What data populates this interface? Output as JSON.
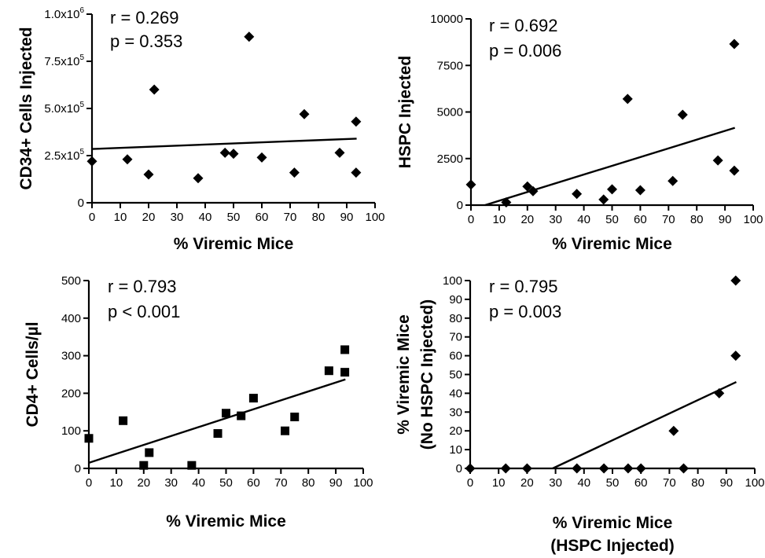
{
  "chart_data": [
    {
      "id": "a",
      "type": "scatter",
      "marker": "diamond",
      "xlabel": "% Viremic Mice",
      "ylabel": "CD34+ Cells Injected",
      "xlim": [
        0,
        100
      ],
      "ylim": [
        0,
        1000000
      ],
      "xticks": [
        0,
        10,
        20,
        30,
        40,
        50,
        60,
        70,
        80,
        90,
        100
      ],
      "yticks": [
        0,
        250000,
        500000,
        750000,
        1000000
      ],
      "ytick_labels": [
        {
          "value": 0,
          "base": "0",
          "exp": ""
        },
        {
          "value": 250000,
          "base": "2.5x10",
          "exp": "5"
        },
        {
          "value": 500000,
          "base": "5.0x10",
          "exp": "5"
        },
        {
          "value": 750000,
          "base": "7.5x10",
          "exp": "5"
        },
        {
          "value": 1000000,
          "base": "1.0x10",
          "exp": "6"
        }
      ],
      "stats": {
        "r": "r =  0.269",
        "p": "p = 0.353"
      },
      "points": [
        {
          "x": 0,
          "y": 220000
        },
        {
          "x": 12.5,
          "y": 230000
        },
        {
          "x": 20,
          "y": 150000
        },
        {
          "x": 22,
          "y": 600000
        },
        {
          "x": 37.5,
          "y": 130000
        },
        {
          "x": 47,
          "y": 265000
        },
        {
          "x": 50,
          "y": 260000
        },
        {
          "x": 55.5,
          "y": 880000
        },
        {
          "x": 60,
          "y": 240000
        },
        {
          "x": 71.5,
          "y": 160000
        },
        {
          "x": 75,
          "y": 470000
        },
        {
          "x": 87.5,
          "y": 265000
        },
        {
          "x": 93.3,
          "y": 430000
        },
        {
          "x": 93.3,
          "y": 160000
        }
      ],
      "fit": {
        "x": [
          0,
          93.5
        ],
        "y": [
          285000,
          340000
        ]
      }
    },
    {
      "id": "b",
      "type": "scatter",
      "marker": "diamond",
      "xlabel": "% Viremic Mice",
      "ylabel": "HSPC Injected",
      "xlim": [
        0,
        100
      ],
      "ylim": [
        0,
        10000
      ],
      "xticks": [
        0,
        10,
        20,
        30,
        40,
        50,
        60,
        70,
        80,
        90,
        100
      ],
      "yticks": [
        0,
        2500,
        5000,
        7500,
        10000
      ],
      "ytick_labels": [
        {
          "value": 0,
          "base": "0",
          "exp": ""
        },
        {
          "value": 2500,
          "base": "2500",
          "exp": ""
        },
        {
          "value": 5000,
          "base": "5000",
          "exp": ""
        },
        {
          "value": 7500,
          "base": "7500",
          "exp": ""
        },
        {
          "value": 10000,
          "base": "10000",
          "exp": ""
        }
      ],
      "stats": {
        "r": "r =  0.692",
        "p": "p = 0.006"
      },
      "points": [
        {
          "x": 0,
          "y": 1100
        },
        {
          "x": 12.5,
          "y": 150
        },
        {
          "x": 20,
          "y": 1000
        },
        {
          "x": 22,
          "y": 750
        },
        {
          "x": 37.5,
          "y": 600
        },
        {
          "x": 47,
          "y": 300
        },
        {
          "x": 50,
          "y": 850
        },
        {
          "x": 55.5,
          "y": 5700
        },
        {
          "x": 60,
          "y": 800
        },
        {
          "x": 71.5,
          "y": 1300
        },
        {
          "x": 75,
          "y": 4850
        },
        {
          "x": 87.5,
          "y": 2400
        },
        {
          "x": 93.3,
          "y": 8650
        },
        {
          "x": 93.3,
          "y": 1850
        }
      ],
      "fit": {
        "x": [
          5,
          93.5
        ],
        "y": [
          0,
          4150
        ]
      }
    },
    {
      "id": "c",
      "type": "scatter",
      "marker": "square",
      "xlabel": "% Viremic Mice",
      "ylabel": "CD4+ Cells/µl",
      "xlim": [
        0,
        100
      ],
      "ylim": [
        0,
        500
      ],
      "xticks": [
        0,
        10,
        20,
        30,
        40,
        50,
        60,
        70,
        80,
        90,
        100
      ],
      "yticks": [
        0,
        100,
        200,
        300,
        400,
        500
      ],
      "ytick_labels": [
        {
          "value": 0,
          "base": "0",
          "exp": ""
        },
        {
          "value": 100,
          "base": "100",
          "exp": ""
        },
        {
          "value": 200,
          "base": "200",
          "exp": ""
        },
        {
          "value": 300,
          "base": "300",
          "exp": ""
        },
        {
          "value": 400,
          "base": "400",
          "exp": ""
        },
        {
          "value": 500,
          "base": "500",
          "exp": ""
        }
      ],
      "stats": {
        "r": "r =  0.793",
        "p": "p < 0.001"
      },
      "points": [
        {
          "x": 0,
          "y": 80
        },
        {
          "x": 12.5,
          "y": 127
        },
        {
          "x": 20,
          "y": 8
        },
        {
          "x": 22,
          "y": 42
        },
        {
          "x": 37.5,
          "y": 8
        },
        {
          "x": 47,
          "y": 93
        },
        {
          "x": 50,
          "y": 147
        },
        {
          "x": 55.5,
          "y": 140
        },
        {
          "x": 60,
          "y": 187
        },
        {
          "x": 71.5,
          "y": 100
        },
        {
          "x": 75,
          "y": 137
        },
        {
          "x": 87.5,
          "y": 260
        },
        {
          "x": 93.3,
          "y": 316
        },
        {
          "x": 93.3,
          "y": 256
        }
      ],
      "fit": {
        "x": [
          0,
          93.5
        ],
        "y": [
          15,
          237
        ]
      }
    },
    {
      "id": "d",
      "type": "scatter",
      "marker": "diamond",
      "xlabel": "% Viremic Mice",
      "xlabel2": "(HSPC Injected)",
      "ylabel": "% Viremic Mice",
      "ylabel2": "(No HSPC Injected)",
      "xlim": [
        0,
        100
      ],
      "ylim": [
        0,
        100
      ],
      "xticks": [
        0,
        10,
        20,
        30,
        40,
        50,
        60,
        70,
        80,
        90,
        100
      ],
      "yticks": [
        0,
        10,
        20,
        30,
        40,
        50,
        60,
        70,
        80,
        90,
        100
      ],
      "ytick_labels": [
        {
          "value": 0,
          "base": "0",
          "exp": ""
        },
        {
          "value": 10,
          "base": "10",
          "exp": ""
        },
        {
          "value": 20,
          "base": "20",
          "exp": ""
        },
        {
          "value": 30,
          "base": "30",
          "exp": ""
        },
        {
          "value": 40,
          "base": "40",
          "exp": ""
        },
        {
          "value": 50,
          "base": "50",
          "exp": ""
        },
        {
          "value": 60,
          "base": "60",
          "exp": ""
        },
        {
          "value": 70,
          "base": "70",
          "exp": ""
        },
        {
          "value": 80,
          "base": "80",
          "exp": ""
        },
        {
          "value": 90,
          "base": "90",
          "exp": ""
        },
        {
          "value": 100,
          "base": "100",
          "exp": ""
        }
      ],
      "stats": {
        "r": "r =  0.795",
        "p": "p = 0.003"
      },
      "points": [
        {
          "x": 0,
          "y": 0
        },
        {
          "x": 12.5,
          "y": 0
        },
        {
          "x": 20,
          "y": 0
        },
        {
          "x": 37.5,
          "y": 0
        },
        {
          "x": 47,
          "y": 0
        },
        {
          "x": 55.5,
          "y": 0
        },
        {
          "x": 60,
          "y": 0
        },
        {
          "x": 71.5,
          "y": 20
        },
        {
          "x": 75,
          "y": 0
        },
        {
          "x": 87.5,
          "y": 40
        },
        {
          "x": 93.3,
          "y": 100
        },
        {
          "x": 93.3,
          "y": 60
        }
      ],
      "fit": {
        "x": [
          29,
          93.5
        ],
        "y": [
          0,
          46
        ]
      }
    }
  ]
}
